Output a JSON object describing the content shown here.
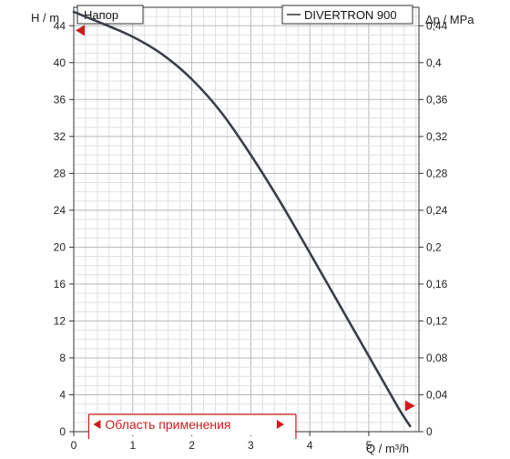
{
  "chart_data": {
    "type": "line",
    "title": "Напор",
    "xlabel": "Q / m³/h",
    "ylabel_left": "H / m",
    "ylabel_right": "Δp / MPa",
    "xlim": [
      0,
      5.85
    ],
    "ylim": [
      0,
      46
    ],
    "y2lim": [
      0,
      0.46
    ],
    "x_ticks": [
      "0",
      "1",
      "2",
      "3",
      "4",
      "5"
    ],
    "y_ticks": [
      "0",
      "4",
      "8",
      "12",
      "16",
      "20",
      "24",
      "28",
      "32",
      "36",
      "40",
      "44"
    ],
    "y2_ticks": [
      "0",
      "0,04",
      "0,08",
      "0,12",
      "0,16",
      "0,2",
      "0,24",
      "0,28",
      "0,32",
      "0,36",
      "0,4",
      "0,44"
    ],
    "grid": true,
    "legend_position": "top-right",
    "series": [
      {
        "name": "DIVERTRON 900",
        "color": "#3a3f47",
        "x": [
          0,
          0.5,
          1.0,
          1.5,
          2.0,
          2.5,
          3.0,
          3.5,
          4.0,
          4.5,
          5.0,
          5.5,
          5.7
        ],
        "y": [
          45.5,
          44.2,
          42.8,
          40.9,
          38.2,
          34.6,
          30.0,
          24.9,
          19.4,
          13.8,
          8.2,
          2.6,
          0.6
        ]
      }
    ],
    "markers": [
      {
        "x": 0,
        "y": 43.5,
        "direction": "left",
        "color": "#d01c1c"
      },
      {
        "x": 5.6,
        "y": 2.8,
        "direction": "right",
        "color": "#d01c1c"
      }
    ],
    "application_range": {
      "label": "Область применения",
      "x_start": 0.3,
      "x_end": 3.75,
      "color": "#d01c1c"
    }
  }
}
